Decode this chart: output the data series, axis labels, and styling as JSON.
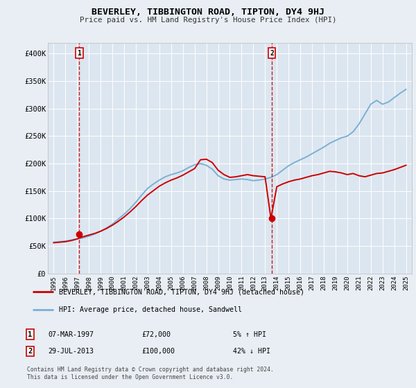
{
  "title": "BEVERLEY, TIBBINGTON ROAD, TIPTON, DY4 9HJ",
  "subtitle": "Price paid vs. HM Land Registry's House Price Index (HPI)",
  "legend_line1": "BEVERLEY, TIBBINGTON ROAD, TIPTON, DY4 9HJ (detached house)",
  "legend_line2": "HPI: Average price, detached house, Sandwell",
  "footer": "Contains HM Land Registry data © Crown copyright and database right 2024.\nThis data is licensed under the Open Government Licence v3.0.",
  "transaction1_label": "1",
  "transaction1_date": "07-MAR-1997",
  "transaction1_price": "£72,000",
  "transaction1_hpi": "5% ↑ HPI",
  "transaction1_year": 1997.18,
  "transaction1_value": 72000,
  "transaction2_label": "2",
  "transaction2_date": "29-JUL-2013",
  "transaction2_price": "£100,000",
  "transaction2_hpi": "42% ↓ HPI",
  "transaction2_year": 2013.57,
  "transaction2_value": 100000,
  "price_paid_color": "#cc0000",
  "hpi_color": "#7ab0d4",
  "background_color": "#e8eef4",
  "plot_bg_color": "#dce6f0",
  "grid_color": "#ffffff",
  "ylim": [
    0,
    420000
  ],
  "xlim": [
    1994.5,
    2025.5
  ],
  "yticks": [
    0,
    50000,
    100000,
    150000,
    200000,
    250000,
    300000,
    350000,
    400000
  ],
  "ytick_labels": [
    "£0",
    "£50K",
    "£100K",
    "£150K",
    "£200K",
    "£250K",
    "£300K",
    "£350K",
    "£400K"
  ],
  "xticks": [
    1995,
    1996,
    1997,
    1998,
    1999,
    2000,
    2001,
    2002,
    2003,
    2004,
    2005,
    2006,
    2007,
    2008,
    2009,
    2010,
    2011,
    2012,
    2013,
    2014,
    2015,
    2016,
    2017,
    2018,
    2019,
    2020,
    2021,
    2022,
    2023,
    2024,
    2025
  ],
  "hpi_years": [
    1995,
    1995.5,
    1996,
    1996.5,
    1997,
    1997.5,
    1998,
    1998.5,
    1999,
    1999.5,
    2000,
    2000.5,
    2001,
    2001.5,
    2002,
    2002.5,
    2003,
    2003.5,
    2004,
    2004.5,
    2005,
    2005.5,
    2006,
    2006.5,
    2007,
    2007.5,
    2008,
    2008.5,
    2009,
    2009.5,
    2010,
    2010.5,
    2011,
    2011.5,
    2012,
    2012.5,
    2013,
    2013.5,
    2014,
    2014.5,
    2015,
    2015.5,
    2016,
    2016.5,
    2017,
    2017.5,
    2018,
    2018.5,
    2019,
    2019.5,
    2020,
    2020.5,
    2021,
    2021.5,
    2022,
    2022.5,
    2023,
    2023.5,
    2024,
    2024.5,
    2025
  ],
  "hpi_values": [
    57000,
    58000,
    59000,
    61000,
    63000,
    65000,
    68000,
    72000,
    77000,
    83000,
    90000,
    99000,
    108000,
    118000,
    130000,
    143000,
    155000,
    163000,
    170000,
    176000,
    180000,
    183000,
    187000,
    193000,
    198000,
    200000,
    197000,
    190000,
    178000,
    172000,
    170000,
    171000,
    172000,
    171000,
    169000,
    170000,
    172000,
    175000,
    180000,
    188000,
    196000,
    202000,
    207000,
    212000,
    218000,
    224000,
    230000,
    237000,
    242000,
    247000,
    250000,
    258000,
    272000,
    290000,
    308000,
    315000,
    308000,
    312000,
    320000,
    328000,
    335000
  ],
  "price_years": [
    1995,
    1995.5,
    1996,
    1996.5,
    1997,
    1997.5,
    1998,
    1998.5,
    1999,
    1999.5,
    2000,
    2000.5,
    2001,
    2001.5,
    2002,
    2002.5,
    2003,
    2003.5,
    2004,
    2004.5,
    2005,
    2005.5,
    2006,
    2006.5,
    2007,
    2007.5,
    2008,
    2008.5,
    2009,
    2009.5,
    2010,
    2010.5,
    2011,
    2011.5,
    2012,
    2012.5,
    2013,
    2013.5,
    2014,
    2014.5,
    2015,
    2015.5,
    2016,
    2016.5,
    2017,
    2017.5,
    2018,
    2018.5,
    2019,
    2019.5,
    2020,
    2020.5,
    2021,
    2021.5,
    2022,
    2022.5,
    2023,
    2023.5,
    2024,
    2024.5,
    2025
  ],
  "price_values": [
    56000,
    57000,
    58000,
    60000,
    63000,
    67000,
    70000,
    73000,
    77000,
    82000,
    88000,
    95000,
    103000,
    112000,
    122000,
    133000,
    143000,
    151000,
    159000,
    165000,
    170000,
    174000,
    179000,
    185000,
    191000,
    207000,
    208000,
    202000,
    188000,
    180000,
    175000,
    176000,
    178000,
    180000,
    178000,
    177000,
    176000,
    100000,
    158000,
    163000,
    167000,
    170000,
    172000,
    175000,
    178000,
    180000,
    183000,
    186000,
    185000,
    183000,
    180000,
    182000,
    178000,
    176000,
    179000,
    182000,
    183000,
    186000,
    189000,
    193000,
    197000
  ]
}
